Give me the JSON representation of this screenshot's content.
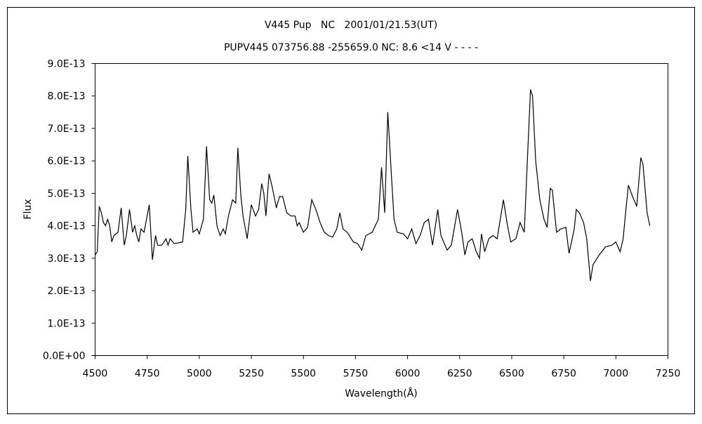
{
  "chart_data": {
    "type": "line",
    "title": "V445 Pup   NC   2001/01/21.53(UT)",
    "subtitle": "PUPV445 073756.88 -255659.0 NC: 8.6 <14 V - - - -",
    "x_label": "Wavelength(Å)",
    "y_label": "Flux",
    "xlim": [
      4500,
      7250
    ],
    "xticks": [
      4500,
      4750,
      5000,
      5250,
      5500,
      5750,
      6000,
      6250,
      6500,
      6750,
      7000,
      7250
    ],
    "ylim": [
      0,
      9e-13
    ],
    "yticks": [
      {
        "value": 0,
        "label": "0.0E+00"
      },
      {
        "value": 1e-13,
        "label": "1.0E-13"
      },
      {
        "value": 2e-13,
        "label": "2.0E-13"
      },
      {
        "value": 3e-13,
        "label": "3.0E-13"
      },
      {
        "value": 4e-13,
        "label": "4.0E-13"
      },
      {
        "value": 5e-13,
        "label": "5.0E-13"
      },
      {
        "value": 6e-13,
        "label": "6.0E-13"
      },
      {
        "value": 7e-13,
        "label": "7.0E-13"
      },
      {
        "value": 8e-13,
        "label": "8.0E-13"
      },
      {
        "value": 9e-13,
        "label": "9.0E-13"
      }
    ],
    "color": "#000000",
    "x": [
      4500,
      4510,
      4520,
      4530,
      4540,
      4550,
      4560,
      4570,
      4580,
      4590,
      4610,
      4625,
      4640,
      4650,
      4665,
      4680,
      4690,
      4700,
      4710,
      4720,
      4735,
      4760,
      4775,
      4790,
      4800,
      4820,
      4840,
      4850,
      4860,
      4880,
      4920,
      4935,
      4945,
      4960,
      4970,
      4990,
      5000,
      5020,
      5035,
      5050,
      5060,
      5070,
      5085,
      5100,
      5115,
      5125,
      5140,
      5160,
      5175,
      5185,
      5200,
      5210,
      5230,
      5250,
      5270,
      5285,
      5300,
      5310,
      5320,
      5335,
      5350,
      5370,
      5385,
      5400,
      5420,
      5440,
      5460,
      5470,
      5480,
      5500,
      5520,
      5540,
      5560,
      5580,
      5600,
      5620,
      5640,
      5660,
      5675,
      5690,
      5710,
      5740,
      5760,
      5780,
      5800,
      5830,
      5860,
      5875,
      5890,
      5905,
      5920,
      5935,
      5950,
      5980,
      6000,
      6020,
      6040,
      6060,
      6080,
      6100,
      6120,
      6145,
      6160,
      6190,
      6210,
      6240,
      6260,
      6275,
      6290,
      6310,
      6330,
      6345,
      6355,
      6370,
      6390,
      6410,
      6430,
      6460,
      6480,
      6495,
      6520,
      6540,
      6560,
      6575,
      6590,
      6600,
      6615,
      6635,
      6655,
      6670,
      6685,
      6695,
      6715,
      6735,
      6760,
      6775,
      6800,
      6810,
      6825,
      6845,
      6860,
      6878,
      6890,
      6920,
      6950,
      6980,
      7000,
      7020,
      7035,
      7045,
      7060,
      7080,
      7100,
      7120,
      7130,
      7150,
      7163
    ],
    "values": [
      3.1e-13,
      3.2e-13,
      4.6e-13,
      4.4e-13,
      4.1e-13,
      4e-13,
      4.2e-13,
      4e-13,
      3.5e-13,
      3.7e-13,
      3.8e-13,
      4.55e-13,
      3.4e-13,
      3.7e-13,
      4.5e-13,
      3.8e-13,
      4e-13,
      3.7e-13,
      3.5e-13,
      3.9e-13,
      3.8e-13,
      4.65e-13,
      2.95e-13,
      3.7e-13,
      3.4e-13,
      3.4e-13,
      3.6e-13,
      3.4e-13,
      3.6e-13,
      3.45e-13,
      3.5e-13,
      4.5e-13,
      6.15e-13,
      4.5e-13,
      3.8e-13,
      3.9e-13,
      3.75e-13,
      4.2e-13,
      6.45e-13,
      4.8e-13,
      4.7e-13,
      4.95e-13,
      4e-13,
      3.7e-13,
      3.9e-13,
      3.75e-13,
      4.3e-13,
      4.8e-13,
      4.7e-13,
      6.4e-13,
      4.9e-13,
      4.3e-13,
      3.6e-13,
      4.65e-13,
      4.3e-13,
      4.5e-13,
      5.3e-13,
      5e-13,
      4.3e-13,
      5.6e-13,
      5.2e-13,
      4.55e-13,
      4.9e-13,
      4.9e-13,
      4.4e-13,
      4.3e-13,
      4.3e-13,
      4e-13,
      4.1e-13,
      3.8e-13,
      3.95e-13,
      4.8e-13,
      4.5e-13,
      4.1e-13,
      3.8e-13,
      3.7e-13,
      3.65e-13,
      3.9e-13,
      4.4e-13,
      3.9e-13,
      3.8e-13,
      3.5e-13,
      3.45e-13,
      3.25e-13,
      3.7e-13,
      3.8e-13,
      4.2e-13,
      5.8e-13,
      4.4e-13,
      7.5e-13,
      5.8e-13,
      4.2e-13,
      3.8e-13,
      3.75e-13,
      3.6e-13,
      3.9e-13,
      3.45e-13,
      3.7e-13,
      4.1e-13,
      4.2e-13,
      3.4e-13,
      4.5e-13,
      3.7e-13,
      3.25e-13,
      3.4e-13,
      4.5e-13,
      3.8e-13,
      3.1e-13,
      3.5e-13,
      3.6e-13,
      3.2e-13,
      3e-13,
      3.75e-13,
      3.2e-13,
      3.6e-13,
      3.7e-13,
      3.6e-13,
      4.8e-13,
      4e-13,
      3.5e-13,
      3.6e-13,
      4.1e-13,
      3.8e-13,
      6e-13,
      8.2e-13,
      8e-13,
      6e-13,
      4.8e-13,
      4.2e-13,
      3.95e-13,
      5.15e-13,
      5.1e-13,
      3.8e-13,
      3.9e-13,
      3.95e-13,
      3.15e-13,
      3.9e-13,
      4.5e-13,
      4.4e-13,
      4.1e-13,
      3.6e-13,
      2.3e-13,
      2.8e-13,
      3.1e-13,
      3.35e-13,
      3.4e-13,
      3.5e-13,
      3.2e-13,
      3.6e-13,
      4.3e-13,
      5.25e-13,
      4.9e-13,
      4.6e-13,
      6.1e-13,
      5.9e-13,
      4.4e-13,
      4e-13
    ]
  }
}
